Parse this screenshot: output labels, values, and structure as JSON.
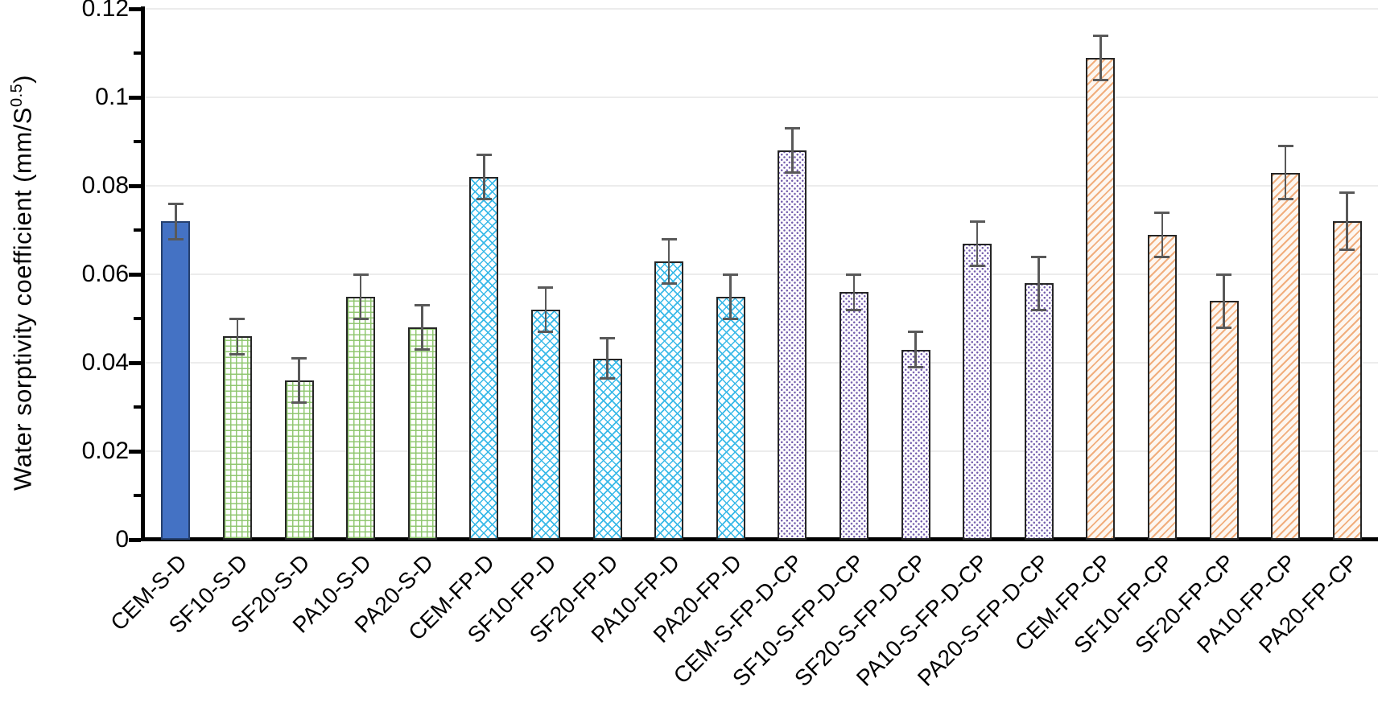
{
  "chart_data": {
    "type": "bar",
    "title": "",
    "ylabel_prefix": "Water sorptivity coefficient  (mm/S",
    "ylabel_sup": "0.5",
    "ylabel_suffix": ")",
    "ylim": [
      0,
      0.12
    ],
    "ytick_interval_major": 0.02,
    "ytick_interval_minor": 0.01,
    "ytick_labels": [
      "0",
      "0.02",
      "0.04",
      "0.06",
      "0.08",
      "0.1",
      "0.12"
    ],
    "grid": "horizontal-major",
    "legend": "none",
    "categories": [
      "CEM-S-D",
      "SF10-S-D",
      "SF20-S-D",
      "PA10-S-D",
      "PA20-S-D",
      "CEM-FP-D",
      "SF10-FP-D",
      "SF20-FP-D",
      "PA10-FP-D",
      "PA20-FP-D",
      "CEM-S-FP-D-CP",
      "SF10-S-FP-D-CP",
      "SF20-S-FP-D-CP",
      "PA10-S-FP-D-CP",
      "PA20-S-FP-D-CP",
      "CEM-FP-CP",
      "SF10-FP-CP",
      "SF20-FP-CP",
      "PA10-FP-CP",
      "PA20-FP-CP"
    ],
    "values": [
      0.072,
      0.046,
      0.036,
      0.055,
      0.048,
      0.082,
      0.052,
      0.041,
      0.063,
      0.055,
      0.088,
      0.056,
      0.043,
      0.067,
      0.058,
      0.109,
      0.069,
      0.054,
      0.083,
      0.072
    ],
    "errors": [
      0.004,
      0.004,
      0.005,
      0.005,
      0.005,
      0.005,
      0.005,
      0.0045,
      0.005,
      0.005,
      0.005,
      0.004,
      0.004,
      0.005,
      0.006,
      0.005,
      0.005,
      0.006,
      0.006,
      0.0065
    ],
    "bar_styles": [
      "solid-blue",
      "grid-green",
      "grid-green",
      "grid-green",
      "grid-green",
      "cross-cyan",
      "cross-cyan",
      "cross-cyan",
      "cross-cyan",
      "cross-cyan",
      "dots-purple",
      "dots-purple",
      "dots-purple",
      "dots-purple",
      "dots-purple",
      "stripe-tan",
      "stripe-tan",
      "stripe-tan",
      "stripe-tan",
      "stripe-tan"
    ],
    "style_colors": {
      "solid-blue": "#4472C4",
      "grid-green": "#8dc56c",
      "cross-cyan": "#38b9e8",
      "dots-purple": "#7660ae",
      "stripe-tan": "#f1ae7d",
      "error_bar": "#595959",
      "gridline": "#ececec",
      "axis": "#000000"
    }
  }
}
